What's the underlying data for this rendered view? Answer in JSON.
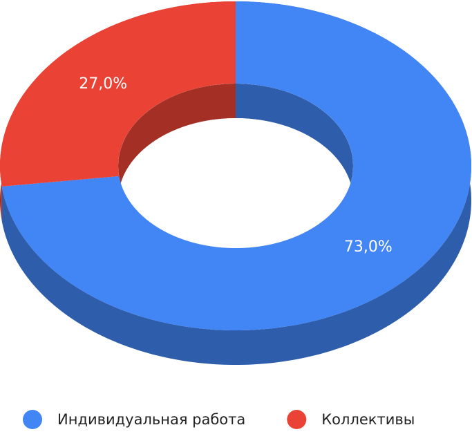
{
  "chart_data": {
    "type": "pie",
    "donut": true,
    "three_d": true,
    "categories": [
      "Индивидуальная работа",
      "Коллективы"
    ],
    "values": [
      73,
      27
    ],
    "value_labels": [
      "73,0%",
      "27,0%"
    ],
    "colors": [
      "#4285f4",
      "#ea4335"
    ],
    "legend": "bottom"
  }
}
